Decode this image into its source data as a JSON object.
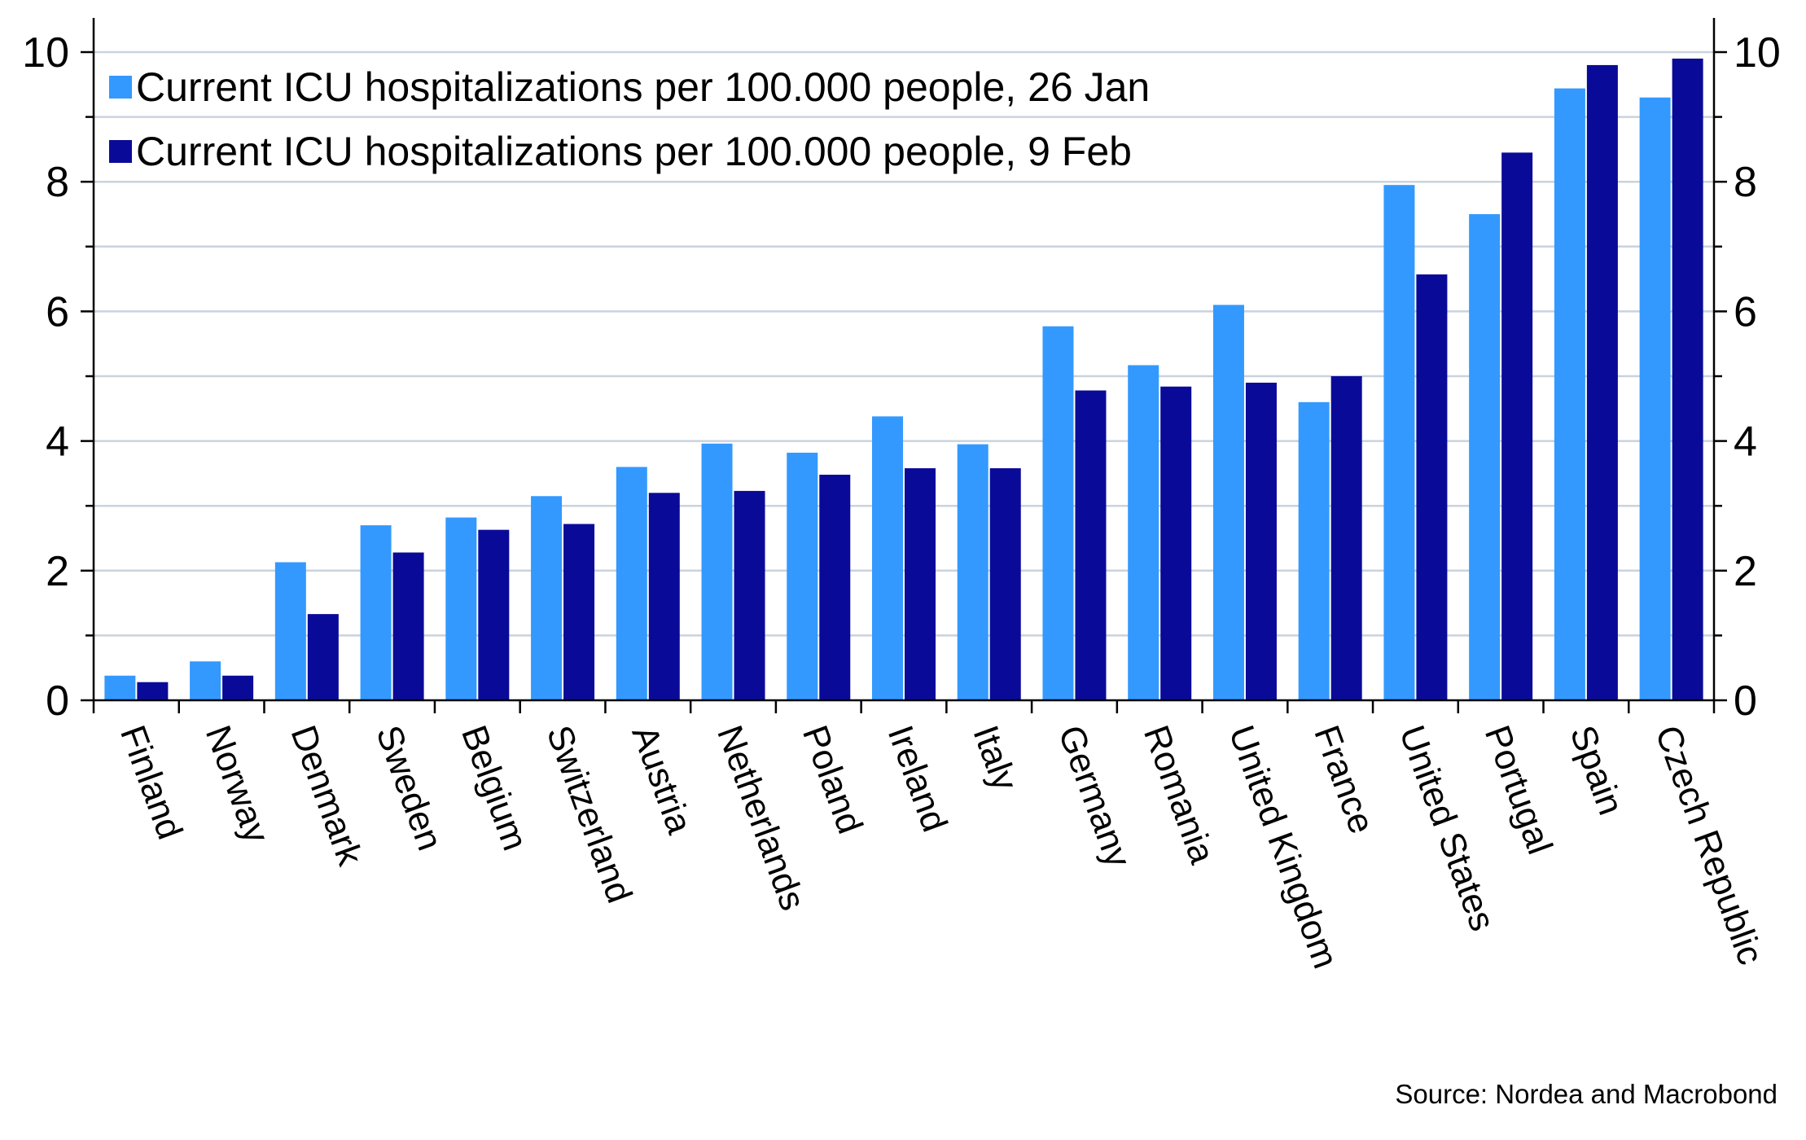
{
  "chart_data": {
    "type": "bar",
    "categories": [
      "Finland",
      "Norway",
      "Denmark",
      "Sweden",
      "Belgium",
      "Switzerland",
      "Austria",
      "Netherlands",
      "Poland",
      "Ireland",
      "Italy",
      "Germany",
      "Romania",
      "United Kingdom",
      "France",
      "United States",
      "Portugal",
      "Spain",
      "Czech Republic"
    ],
    "series": [
      {
        "name": "Current ICU hospitalizations per 100.000 people, 26 Jan",
        "color": "#3399ff",
        "values": [
          0.38,
          0.6,
          2.13,
          2.7,
          2.82,
          3.15,
          3.6,
          3.96,
          3.82,
          4.38,
          3.95,
          5.77,
          5.17,
          6.1,
          4.6,
          7.95,
          7.5,
          9.44,
          9.3
        ]
      },
      {
        "name": "Current ICU hospitalizations per 100.000 people, 9 Feb",
        "color": "#0a0a99",
        "values": [
          0.28,
          0.38,
          1.33,
          2.28,
          2.63,
          2.72,
          3.2,
          3.23,
          3.48,
          3.58,
          3.58,
          4.78,
          4.84,
          4.9,
          5.0,
          6.57,
          8.45,
          9.8,
          9.9
        ]
      }
    ],
    "yticks": [
      "0",
      "2",
      "4",
      "6",
      "8",
      "10"
    ],
    "ylim": [
      0,
      10.3
    ],
    "grid": true,
    "legend_position": "top-left",
    "xlabel": "",
    "ylabel": ""
  },
  "source": "Source: Nordea and Macrobond"
}
